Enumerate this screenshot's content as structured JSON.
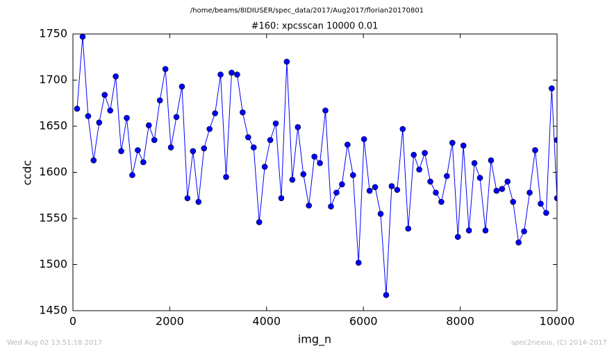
{
  "chart_data": {
    "type": "line",
    "suptitle": "/home/beams/8IDIUSER/spec_data/2017/Aug2017/florian20170801",
    "title": "#160: xpcsscan 10000 0.01",
    "x_label": "img_n",
    "y_label": "ccdc",
    "footer_left": "Wed Aug 02 13:51:18 2017",
    "footer_right": "spec2nexus, (C) 2014-2017",
    "xlim": [
      0,
      10000
    ],
    "xticks": [
      0,
      2000,
      4000,
      6000,
      8000,
      10000
    ],
    "ylim": [
      1450,
      1750
    ],
    "yticks": [
      1450,
      1500,
      1550,
      1600,
      1650,
      1700,
      1750
    ],
    "grid": false,
    "x": [
      86,
      200,
      314,
      428,
      542,
      656,
      770,
      884,
      998,
      1112,
      1226,
      1340,
      1454,
      1568,
      1682,
      1796,
      1910,
      2024,
      2138,
      2252,
      2366,
      2480,
      2594,
      2708,
      2822,
      2936,
      3050,
      3164,
      3278,
      3392,
      3506,
      3620,
      3734,
      3848,
      3962,
      4076,
      4190,
      4304,
      4418,
      4532,
      4646,
      4760,
      4874,
      4988,
      5102,
      5216,
      5330,
      5444,
      5558,
      5672,
      5786,
      5900,
      6014,
      6128,
      6242,
      6356,
      6470,
      6584,
      6698,
      6812,
      6926,
      7040,
      7154,
      7268,
      7382,
      7496,
      7610,
      7724,
      7838,
      7952,
      8066,
      8180,
      8294,
      8408,
      8522,
      8636,
      8750,
      8864,
      8978,
      9092,
      9206,
      9320,
      9434,
      9548,
      9662,
      9776,
      9890,
      10000,
      10000
    ],
    "series": [
      {
        "color": "#0000ff",
        "values": [
          1669,
          1747,
          1661,
          1613,
          1654,
          1684,
          1667,
          1704,
          1623,
          1659,
          1597,
          1624,
          1611,
          1651,
          1635,
          1678,
          1712,
          1627,
          1660,
          1693,
          1572,
          1623,
          1568,
          1626,
          1647,
          1664,
          1706,
          1595,
          1708,
          1706,
          1665,
          1638,
          1627,
          1546,
          1606,
          1635,
          1653,
          1572,
          1720,
          1592,
          1649,
          1598,
          1564,
          1617,
          1610,
          1667,
          1563,
          1578,
          1587,
          1630,
          1597,
          1502,
          1636,
          1580,
          1584,
          1555,
          1467,
          1585,
          1581,
          1647,
          1539,
          1619,
          1603,
          1621,
          1590,
          1578,
          1568,
          1596,
          1632,
          1530,
          1629,
          1537,
          1610,
          1594,
          1537,
          1613,
          1580,
          1582,
          1590,
          1568,
          1524,
          1536,
          1578,
          1624,
          1566,
          1556,
          1691,
          1572,
          1635
        ]
      }
    ]
  }
}
